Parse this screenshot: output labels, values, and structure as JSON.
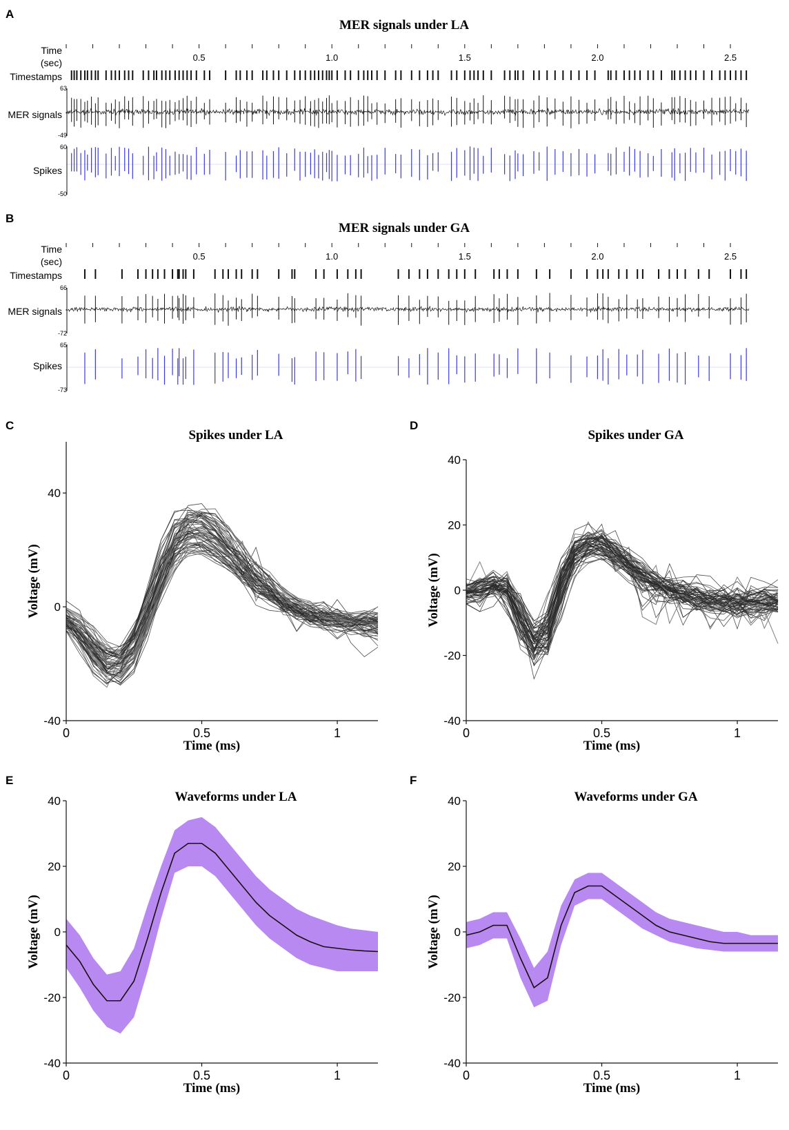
{
  "colors": {
    "trace": "#111111",
    "spike": "#3a3ad8",
    "overlay": "#7a7a7a",
    "band": "#b07cf0",
    "mean": "#1a0d0d",
    "axis": "#111111"
  },
  "panelA": {
    "letter": "A",
    "title": "MER signals under LA",
    "time_label_1": "Time",
    "time_label_2": "(sec)",
    "ts_label": "Timestamps",
    "mer_label": "MER signals",
    "spk_label": "Spikes",
    "mer_max": "63",
    "mer_min": "-49",
    "spk_max": "60",
    "spk_min": "-50",
    "time_range": [
      0,
      2.57
    ],
    "ticks": [
      "0.5",
      "1.0",
      "1.5",
      "2.0",
      "2.5"
    ],
    "tick_values": [
      0.5,
      1.0,
      1.5,
      2.0,
      2.5
    ],
    "spike_times": [
      0.02,
      0.03,
      0.04,
      0.055,
      0.07,
      0.08,
      0.095,
      0.11,
      0.12,
      0.15,
      0.17,
      0.185,
      0.2,
      0.22,
      0.235,
      0.25,
      0.29,
      0.31,
      0.33,
      0.34,
      0.36,
      0.375,
      0.39,
      0.41,
      0.425,
      0.44,
      0.455,
      0.47,
      0.49,
      0.52,
      0.54,
      0.6,
      0.64,
      0.655,
      0.68,
      0.7,
      0.74,
      0.755,
      0.78,
      0.8,
      0.83,
      0.86,
      0.88,
      0.9,
      0.92,
      0.935,
      0.95,
      0.965,
      0.98,
      0.99,
      1.0,
      1.02,
      1.05,
      1.07,
      1.1,
      1.12,
      1.135,
      1.15,
      1.17,
      1.2,
      1.24,
      1.26,
      1.3,
      1.33,
      1.36,
      1.38,
      1.4,
      1.45,
      1.47,
      1.5,
      1.52,
      1.535,
      1.55,
      1.57,
      1.6,
      1.65,
      1.67,
      1.69,
      1.7,
      1.72,
      1.76,
      1.78,
      1.81,
      1.84,
      1.87,
      1.9,
      1.93,
      1.96,
      1.99,
      2.04,
      2.05,
      2.07,
      2.1,
      2.12,
      2.14,
      2.16,
      2.19,
      2.21,
      2.24,
      2.28,
      2.29,
      2.31,
      2.33,
      2.35,
      2.37,
      2.4,
      2.43,
      2.46,
      2.48,
      2.5,
      2.52,
      2.54,
      2.56
    ]
  },
  "panelB": {
    "letter": "B",
    "title": "MER signals under GA",
    "time_label_1": "Time",
    "time_label_2": "(sec)",
    "ts_label": "Timestamps",
    "mer_label": "MER signals",
    "spk_label": "Spikes",
    "mer_max": "66",
    "mer_min": "-72",
    "spk_max": "65",
    "spk_min": "-73",
    "time_range": [
      0,
      2.57
    ],
    "ticks": [
      "0.5",
      "1.0",
      "1.5",
      "2.0",
      "2.5"
    ],
    "tick_values": [
      0.5,
      1.0,
      1.5,
      2.0,
      2.5
    ],
    "spike_times": [
      0.07,
      0.11,
      0.21,
      0.27,
      0.3,
      0.325,
      0.345,
      0.37,
      0.4,
      0.42,
      0.425,
      0.44,
      0.45,
      0.48,
      0.56,
      0.59,
      0.61,
      0.64,
      0.66,
      0.7,
      0.72,
      0.8,
      0.85,
      0.86,
      0.94,
      0.97,
      1.02,
      1.06,
      1.09,
      1.11,
      1.25,
      1.29,
      1.33,
      1.36,
      1.4,
      1.44,
      1.47,
      1.5,
      1.54,
      1.61,
      1.63,
      1.66,
      1.7,
      1.77,
      1.82,
      1.9,
      1.96,
      2.0,
      2.02,
      2.04,
      2.08,
      2.11,
      2.15,
      2.17,
      2.23,
      2.27,
      2.3,
      2.33,
      2.38,
      2.42,
      2.5,
      2.54,
      2.56
    ]
  },
  "chart_data": [
    {
      "panel": "C",
      "type": "line",
      "title": "Spikes under LA",
      "xlabel": "Time (ms)",
      "ylabel": "Voltage (mV)",
      "xlim": [
        0,
        1.15
      ],
      "ylim": [
        -40,
        58
      ],
      "xticks": [
        0,
        0.5,
        1
      ],
      "xtick_labels": [
        "0",
        "0.5",
        "1"
      ],
      "yticks": [
        -40,
        0,
        40
      ],
      "ytick_labels": [
        "-40",
        "0",
        "40"
      ],
      "mean_x": [
        0,
        0.05,
        0.1,
        0.15,
        0.2,
        0.25,
        0.3,
        0.35,
        0.4,
        0.45,
        0.5,
        0.55,
        0.6,
        0.65,
        0.7,
        0.75,
        0.8,
        0.85,
        0.9,
        0.95,
        1.0,
        1.05,
        1.1,
        1.15
      ],
      "mean_y": [
        -4,
        -9,
        -16,
        -21,
        -21,
        -15,
        -2,
        12,
        24,
        27,
        27,
        24,
        19,
        14,
        9,
        5,
        2,
        -1,
        -3,
        -4.5,
        -5,
        -5.5,
        -5.8,
        -6
      ],
      "n_traces": 60
    },
    {
      "panel": "D",
      "type": "line",
      "title": "Spikes under GA",
      "xlabel": "Time (ms)",
      "ylabel": "Voltage (mV)",
      "xlim": [
        0,
        1.15
      ],
      "ylim": [
        -40,
        40
      ],
      "xticks": [
        0,
        0.5,
        1
      ],
      "xtick_labels": [
        "0",
        "0.5",
        "1"
      ],
      "yticks": [
        -40,
        -20,
        0,
        20,
        40
      ],
      "ytick_labels": [
        "-40",
        "-20",
        "0",
        "20",
        "40"
      ],
      "mean_x": [
        0,
        0.05,
        0.1,
        0.15,
        0.2,
        0.25,
        0.3,
        0.35,
        0.4,
        0.45,
        0.5,
        0.55,
        0.6,
        0.65,
        0.7,
        0.75,
        0.8,
        0.85,
        0.9,
        0.95,
        1.0,
        1.05,
        1.1,
        1.15
      ],
      "mean_y": [
        -1,
        0,
        2,
        2,
        -8,
        -17,
        -14,
        2,
        12,
        14,
        14,
        11,
        8,
        5,
        2,
        0,
        -1,
        -2,
        -3,
        -3.5,
        -3.5,
        -3.5,
        -3.5,
        -3.5
      ],
      "n_traces": 60
    },
    {
      "panel": "E",
      "type": "area",
      "title": "Waveforms under LA",
      "xlabel": "Time (ms)",
      "ylabel": "Voltage (mV)",
      "xlim": [
        0,
        1.15
      ],
      "ylim": [
        -40,
        40
      ],
      "xticks": [
        0,
        0.5,
        1
      ],
      "xtick_labels": [
        "0",
        "0.5",
        "1"
      ],
      "yticks": [
        -40,
        -20,
        0,
        20,
        40
      ],
      "ytick_labels": [
        "-40",
        "-20",
        "0",
        "20",
        "40"
      ],
      "x": [
        0,
        0.05,
        0.1,
        0.15,
        0.2,
        0.25,
        0.3,
        0.35,
        0.4,
        0.45,
        0.5,
        0.55,
        0.6,
        0.65,
        0.7,
        0.75,
        0.8,
        0.85,
        0.9,
        0.95,
        1.0,
        1.05,
        1.1,
        1.15
      ],
      "mean": [
        -4,
        -9,
        -16,
        -21,
        -21,
        -15,
        -2,
        12,
        24,
        27,
        27,
        24,
        19,
        14,
        9,
        5,
        2,
        -1,
        -3,
        -4.5,
        -5,
        -5.5,
        -5.8,
        -6
      ],
      "upper": [
        4,
        -1,
        -8,
        -13,
        -12,
        -5,
        8,
        20,
        31,
        34,
        35,
        32,
        27,
        22,
        17,
        13,
        10,
        7,
        5,
        3.5,
        2,
        1,
        0.5,
        0
      ],
      "lower": [
        -11,
        -17,
        -24,
        -29,
        -31,
        -26,
        -12,
        4,
        18,
        20,
        20,
        17,
        12,
        7,
        2,
        -2,
        -5,
        -8,
        -10,
        -11,
        -12,
        -12,
        -12,
        -12
      ]
    },
    {
      "panel": "F",
      "type": "area",
      "title": "Waveforms under GA",
      "xlabel": "Time (ms)",
      "ylabel": "Voltage (mV)",
      "xlim": [
        0,
        1.15
      ],
      "ylim": [
        -40,
        40
      ],
      "xticks": [
        0,
        0.5,
        1
      ],
      "xtick_labels": [
        "0",
        "0.5",
        "1"
      ],
      "yticks": [
        -40,
        -20,
        0,
        20,
        40
      ],
      "ytick_labels": [
        "-40",
        "-20",
        "0",
        "20",
        "40"
      ],
      "x": [
        0,
        0.05,
        0.1,
        0.15,
        0.2,
        0.25,
        0.3,
        0.35,
        0.4,
        0.45,
        0.5,
        0.55,
        0.6,
        0.65,
        0.7,
        0.75,
        0.8,
        0.85,
        0.9,
        0.95,
        1.0,
        1.05,
        1.1,
        1.15
      ],
      "mean": [
        -1,
        0,
        2,
        2,
        -8,
        -17,
        -14,
        2,
        12,
        14,
        14,
        11,
        8,
        5,
        2,
        0,
        -1,
        -2,
        -3,
        -3.5,
        -3.5,
        -3.5,
        -3.5,
        -3.5
      ],
      "upper": [
        3,
        4,
        6,
        6,
        -2,
        -11,
        -6,
        8,
        16,
        18,
        18,
        15,
        12,
        9,
        6,
        4,
        3,
        2,
        1,
        0,
        0,
        -1,
        -1,
        -1
      ],
      "lower": [
        -5,
        -4,
        -2,
        -2,
        -14,
        -23,
        -21,
        -4,
        8,
        10,
        10,
        7,
        4,
        1,
        -1,
        -3,
        -4,
        -5,
        -5.5,
        -6,
        -6,
        -6,
        -6,
        -6
      ]
    }
  ]
}
